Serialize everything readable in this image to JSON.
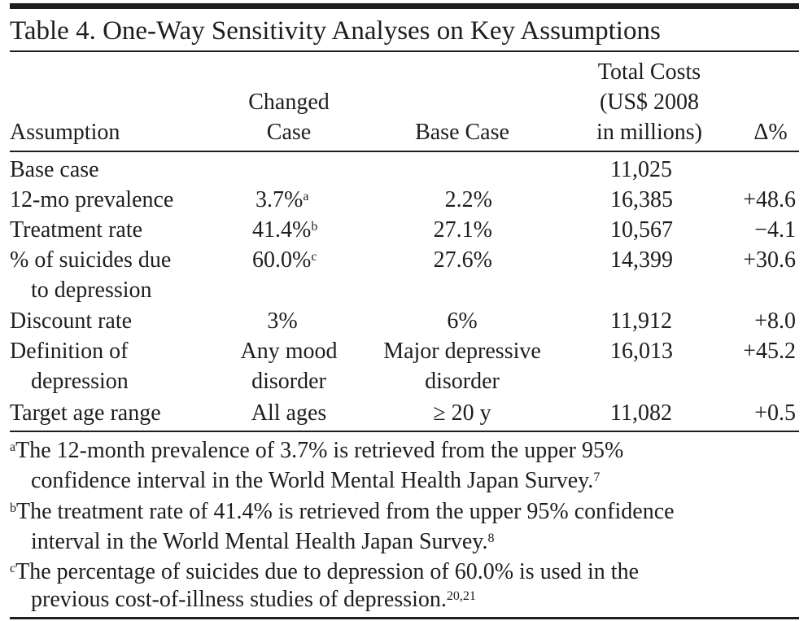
{
  "table": {
    "title": "Table 4. One-Way Sensitivity Analyses on Key Assumptions",
    "headers": {
      "assumption": "Assumption",
      "changed_case": [
        "Changed",
        "Case"
      ],
      "base_case": "Base Case",
      "total_costs": [
        "Total Costs",
        "(US$ 2008",
        "in millions)"
      ],
      "delta": "Δ%"
    },
    "rows": [
      {
        "assumption": [
          "Base case"
        ],
        "changed": "",
        "changed_note": "",
        "base": [],
        "total": "11,025",
        "delta": ""
      },
      {
        "assumption": [
          "12-mo prevalence"
        ],
        "changed": "3.7%",
        "changed_note": "a",
        "base": [
          "2.2%"
        ],
        "total": "16,385",
        "delta": "+48.6"
      },
      {
        "assumption": [
          "Treatment rate"
        ],
        "changed": "41.4%",
        "changed_note": "b",
        "base": [
          "27.1%"
        ],
        "total": "10,567",
        "delta": "−4.1"
      },
      {
        "assumption": [
          "% of suicides due",
          "to depression"
        ],
        "changed": "60.0%",
        "changed_note": "c",
        "base": [
          "27.6%"
        ],
        "total": "14,399",
        "delta": "+30.6"
      },
      {
        "assumption": [
          "Discount rate"
        ],
        "changed": "3%",
        "changed_note": "",
        "base": [
          "6%"
        ],
        "total": "11,912",
        "delta": "+8.0"
      },
      {
        "assumption": [
          "Definition of",
          "depression"
        ],
        "changed_lines": [
          "Any mood",
          "disorder"
        ],
        "base": [
          "Major depressive",
          "disorder"
        ],
        "total": "16,013",
        "delta": "+45.2"
      },
      {
        "assumption": [
          "Target age range"
        ],
        "changed": "All ages",
        "changed_note": "",
        "base": [
          "≥ 20 y"
        ],
        "total": "11,082",
        "delta": "+0.5"
      }
    ],
    "footnotes": [
      {
        "mark": "a",
        "lines": [
          "The 12-month prevalence of 3.7% is retrieved from the upper 95%",
          "confidence interval in the World Mental Health Japan Survey."
        ],
        "ref": "7"
      },
      {
        "mark": "b",
        "lines": [
          "The treatment rate of 41.4% is retrieved from the upper 95% confidence",
          "interval in the World Mental Health Japan Survey."
        ],
        "ref": "8"
      },
      {
        "mark": "c",
        "lines": [
          "The percentage of suicides due to depression of 60.0% is used in the",
          "previous cost-of-illness studies of depression."
        ],
        "ref": "20,21"
      }
    ]
  }
}
